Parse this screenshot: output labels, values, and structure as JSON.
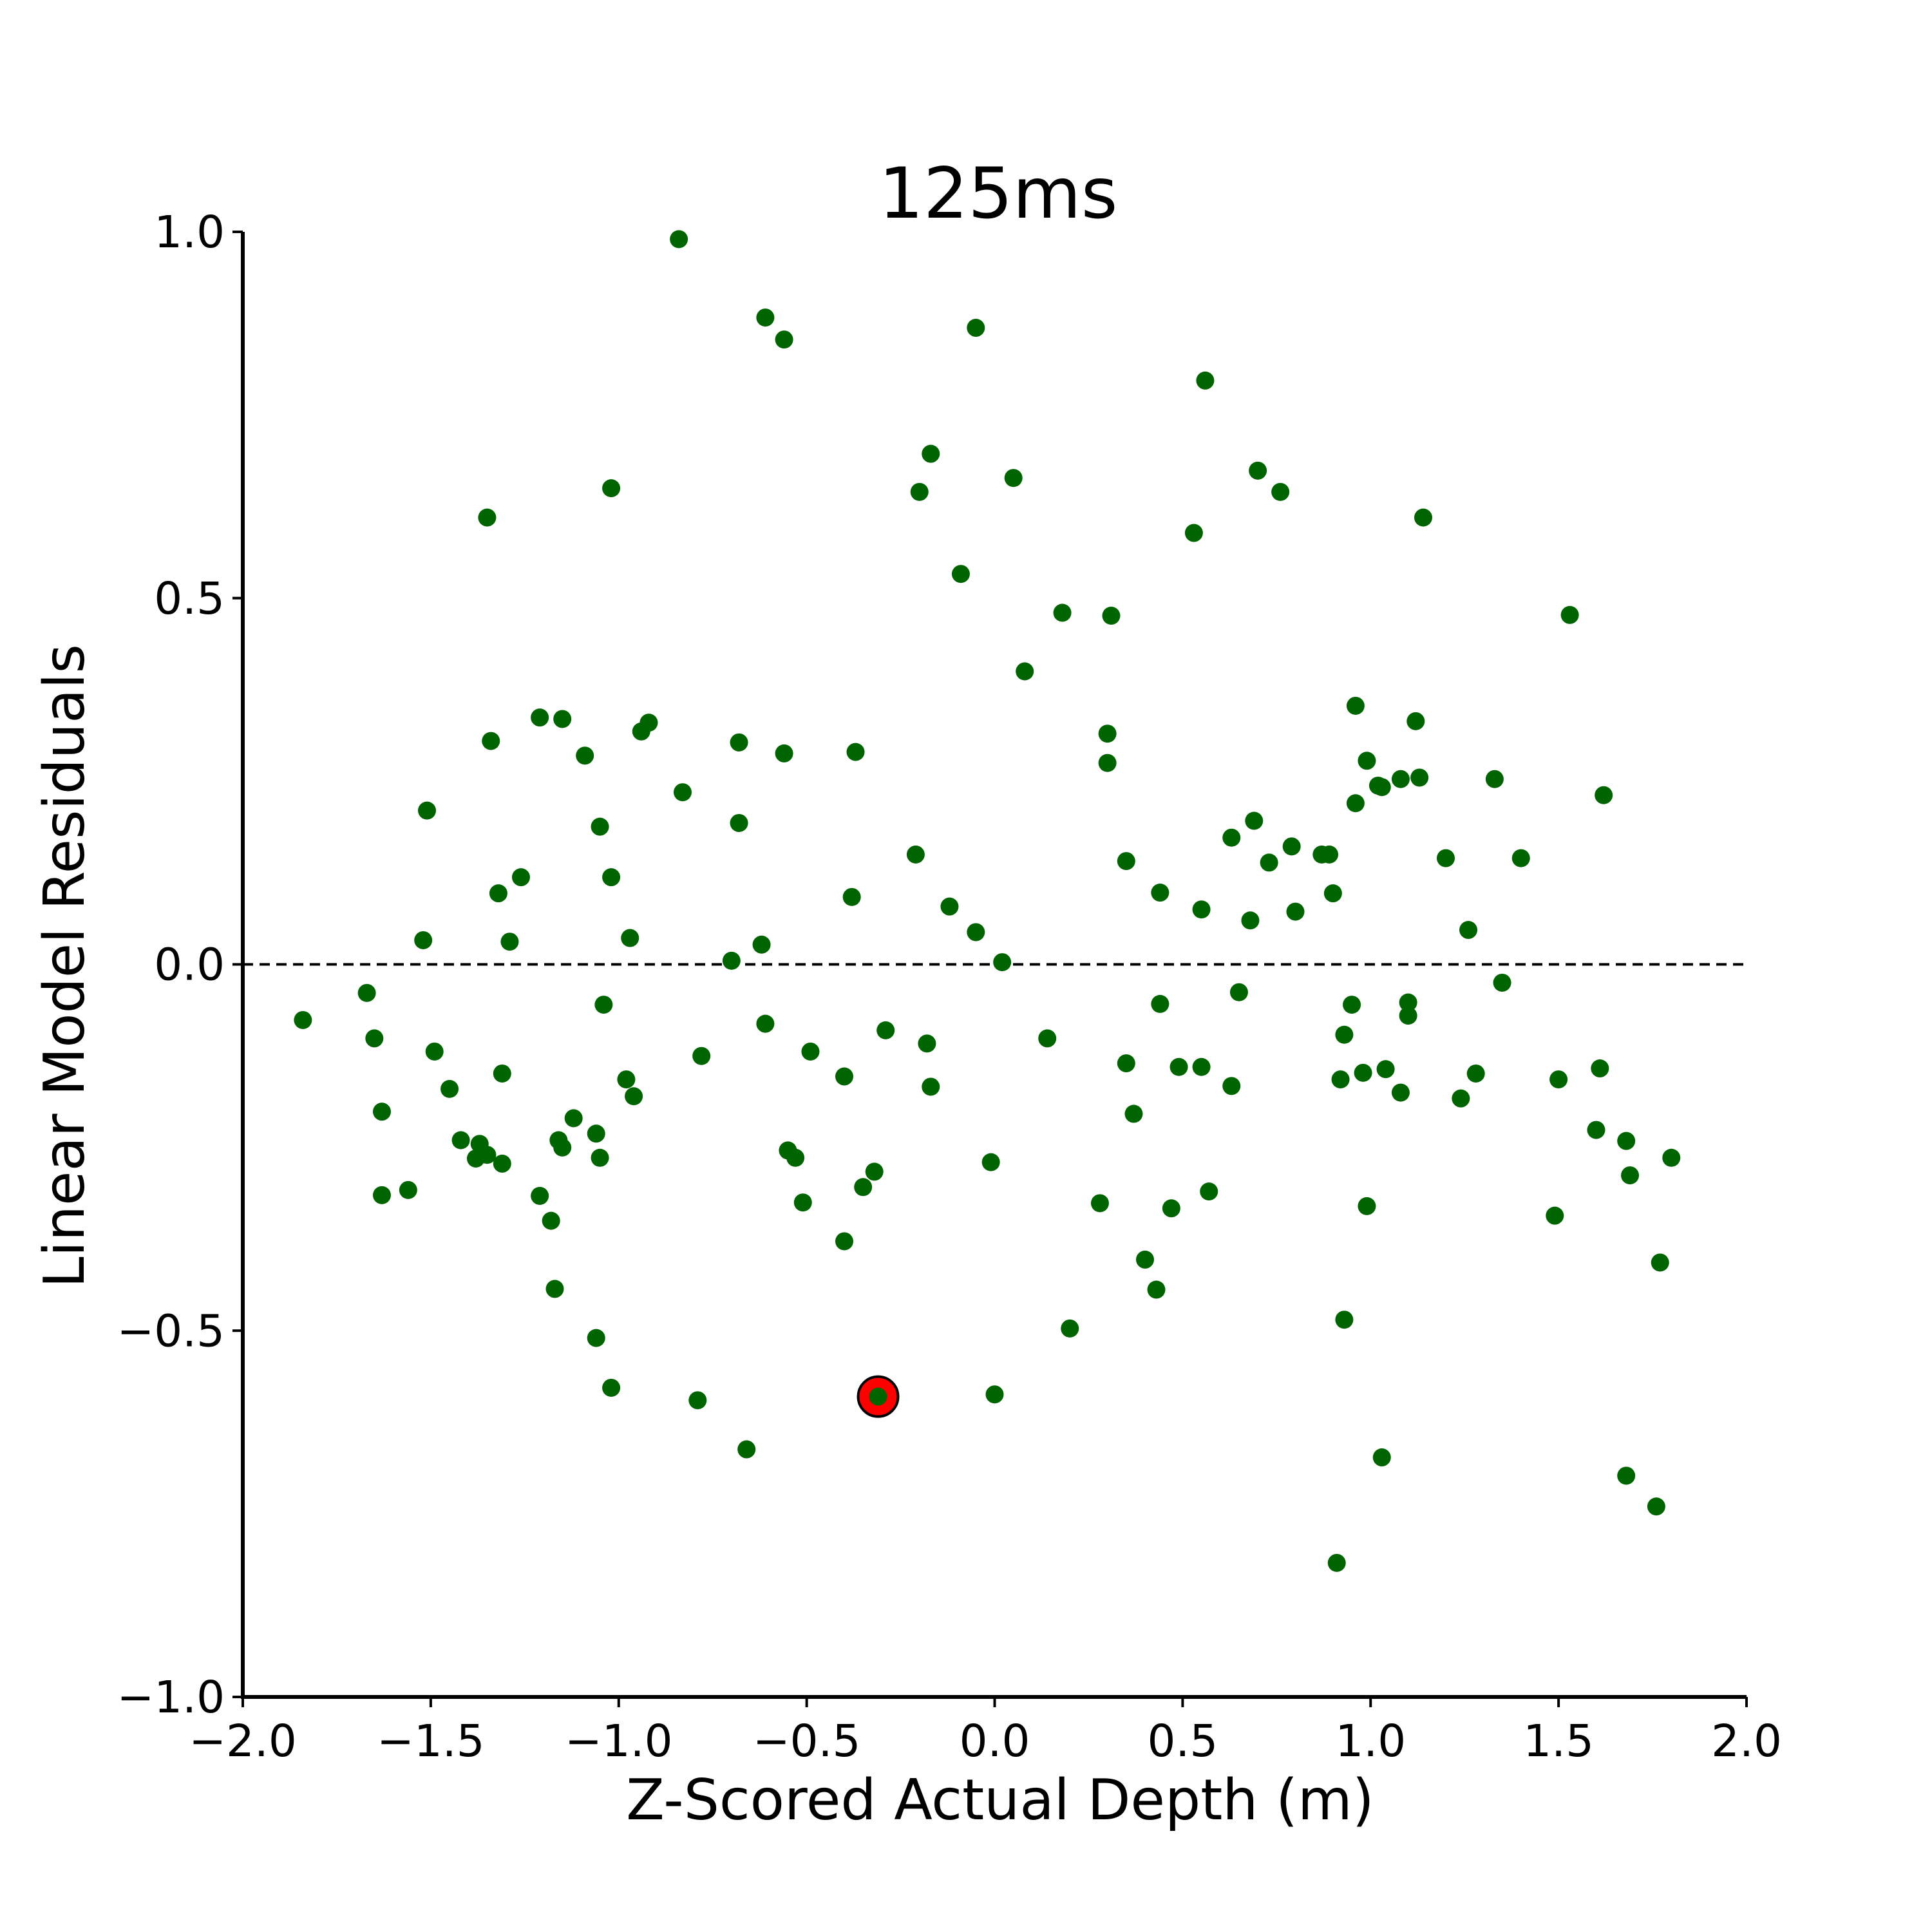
{
  "chart_data": {
    "type": "scatter",
    "title": "125ms",
    "xlabel": "Z-Scored Actual Depth (m)",
    "ylabel": "Linear Model Residuals",
    "xlim": [
      -2.0,
      2.0
    ],
    "ylim": [
      -1.0,
      1.0
    ],
    "x_ticks": [
      "−2.0",
      "−1.5",
      "−1.0",
      "−0.5",
      "0.0",
      "0.5",
      "1.0",
      "1.5",
      "2.0"
    ],
    "y_ticks": [
      "−1.0",
      "−0.5",
      "0.0",
      "0.5",
      "1.0"
    ],
    "reference_line": {
      "y": 0.0,
      "style": "dashed"
    },
    "grid": false,
    "point_color": "#006400",
    "highlight_color": "#ff0000",
    "points": [
      [
        -1.84,
        -0.076
      ],
      [
        -1.67,
        -0.039
      ],
      [
        -1.65,
        -0.101
      ],
      [
        -1.63,
        -0.201
      ],
      [
        -1.63,
        -0.315
      ],
      [
        -1.56,
        -0.308
      ],
      [
        -1.52,
        0.033
      ],
      [
        -1.51,
        0.21
      ],
      [
        -1.49,
        -0.119
      ],
      [
        -1.45,
        -0.17
      ],
      [
        -1.42,
        -0.24
      ],
      [
        -1.38,
        -0.265
      ],
      [
        -1.37,
        -0.245
      ],
      [
        -1.35,
        0.61
      ],
      [
        -1.35,
        -0.26
      ],
      [
        -1.34,
        0.305
      ],
      [
        -1.32,
        0.097
      ],
      [
        -1.31,
        -0.149
      ],
      [
        -1.31,
        -0.272
      ],
      [
        -1.29,
        0.031
      ],
      [
        -1.26,
        0.119
      ],
      [
        -1.21,
        0.337
      ],
      [
        -1.21,
        -0.316
      ],
      [
        -1.18,
        -0.35
      ],
      [
        -1.17,
        -0.443
      ],
      [
        -1.16,
        -0.24
      ],
      [
        -1.15,
        -0.25
      ],
      [
        -1.15,
        0.335
      ],
      [
        -1.12,
        -0.21
      ],
      [
        -1.09,
        0.285
      ],
      [
        -1.06,
        -0.231
      ],
      [
        -1.06,
        -0.51
      ],
      [
        -1.05,
        0.188
      ],
      [
        -1.05,
        -0.264
      ],
      [
        -1.04,
        -0.055
      ],
      [
        -1.02,
        0.65
      ],
      [
        -1.02,
        0.119
      ],
      [
        -1.02,
        -0.578
      ],
      [
        -0.98,
        -0.157
      ],
      [
        -0.97,
        0.036
      ],
      [
        -0.96,
        -0.18
      ],
      [
        -0.94,
        0.318
      ],
      [
        -0.92,
        0.33
      ],
      [
        -0.84,
        0.99
      ],
      [
        -0.83,
        0.235
      ],
      [
        -0.79,
        -0.595
      ],
      [
        -0.78,
        -0.125
      ],
      [
        -0.7,
        0.005
      ],
      [
        -0.68,
        0.303
      ],
      [
        -0.68,
        0.193
      ],
      [
        -0.66,
        -0.662
      ],
      [
        -0.61,
        0.883
      ],
      [
        -0.61,
        -0.081
      ],
      [
        -0.62,
        0.027
      ],
      [
        -0.56,
        0.853
      ],
      [
        -0.56,
        0.288
      ],
      [
        -0.55,
        -0.254
      ],
      [
        -0.53,
        -0.264
      ],
      [
        -0.51,
        -0.325
      ],
      [
        -0.49,
        -0.119
      ],
      [
        -0.4,
        -0.153
      ],
      [
        -0.4,
        -0.378
      ],
      [
        -0.38,
        0.092
      ],
      [
        -0.37,
        0.29
      ],
      [
        -0.35,
        -0.304
      ],
      [
        -0.32,
        -0.283
      ],
      [
        -0.31,
        -0.59
      ],
      [
        -0.29,
        -0.09
      ],
      [
        -0.21,
        0.15
      ],
      [
        -0.2,
        0.645
      ],
      [
        -0.18,
        -0.108
      ],
      [
        -0.17,
        0.697
      ],
      [
        -0.17,
        -0.167
      ],
      [
        -0.12,
        0.079
      ],
      [
        -0.09,
        0.533
      ],
      [
        -0.05,
        0.869
      ],
      [
        -0.05,
        0.044
      ],
      [
        -0.01,
        -0.27
      ],
      [
        0.0,
        -0.587
      ],
      [
        0.02,
        0.003
      ],
      [
        0.05,
        0.664
      ],
      [
        0.08,
        0.4
      ],
      [
        0.14,
        -0.101
      ],
      [
        0.18,
        0.48
      ],
      [
        0.2,
        -0.497
      ],
      [
        0.28,
        -0.326
      ],
      [
        0.3,
        0.315
      ],
      [
        0.3,
        0.275
      ],
      [
        0.31,
        0.476
      ],
      [
        0.35,
        0.141
      ],
      [
        0.35,
        -0.135
      ],
      [
        0.37,
        -0.204
      ],
      [
        0.4,
        -0.403
      ],
      [
        0.43,
        -0.444
      ],
      [
        0.44,
        0.098
      ],
      [
        0.44,
        -0.054
      ],
      [
        0.47,
        -0.333
      ],
      [
        0.49,
        -0.14
      ],
      [
        0.53,
        0.589
      ],
      [
        0.55,
        0.075
      ],
      [
        0.55,
        -0.14
      ],
      [
        0.56,
        0.797
      ],
      [
        0.57,
        -0.31
      ],
      [
        0.63,
        0.173
      ],
      [
        0.63,
        -0.166
      ],
      [
        0.65,
        -0.038
      ],
      [
        0.68,
        0.06
      ],
      [
        0.69,
        0.196
      ],
      [
        0.7,
        0.674
      ],
      [
        0.73,
        0.139
      ],
      [
        0.76,
        0.645
      ],
      [
        0.79,
        0.161
      ],
      [
        0.8,
        0.072
      ],
      [
        0.87,
        0.15
      ],
      [
        0.89,
        0.15
      ],
      [
        0.9,
        0.097
      ],
      [
        0.91,
        -0.817
      ],
      [
        0.92,
        -0.157
      ],
      [
        0.93,
        -0.096
      ],
      [
        0.93,
        -0.485
      ],
      [
        0.95,
        -0.055
      ],
      [
        0.96,
        0.22
      ],
      [
        0.96,
        0.353
      ],
      [
        0.98,
        -0.148
      ],
      [
        0.99,
        0.278
      ],
      [
        0.99,
        -0.33
      ],
      [
        1.02,
        0.244
      ],
      [
        1.03,
        0.242
      ],
      [
        1.03,
        -0.673
      ],
      [
        1.04,
        -0.143
      ],
      [
        1.08,
        -0.175
      ],
      [
        1.08,
        0.253
      ],
      [
        1.1,
        -0.07
      ],
      [
        1.1,
        -0.052
      ],
      [
        1.12,
        0.332
      ],
      [
        1.13,
        0.255
      ],
      [
        1.14,
        0.61
      ],
      [
        1.2,
        0.145
      ],
      [
        1.24,
        -0.183
      ],
      [
        1.26,
        0.047
      ],
      [
        1.28,
        -0.149
      ],
      [
        1.33,
        0.253
      ],
      [
        1.35,
        -0.025
      ],
      [
        1.4,
        0.145
      ],
      [
        1.49,
        -0.343
      ],
      [
        1.5,
        -0.157
      ],
      [
        1.53,
        0.477
      ],
      [
        1.6,
        -0.226
      ],
      [
        1.61,
        -0.142
      ],
      [
        1.62,
        0.231
      ],
      [
        1.68,
        -0.241
      ],
      [
        1.68,
        -0.698
      ],
      [
        1.69,
        -0.288
      ],
      [
        1.76,
        -0.74
      ],
      [
        1.77,
        -0.407
      ],
      [
        1.8,
        -0.264
      ]
    ],
    "highlighted_point": [
      -0.31,
      -0.59
    ]
  }
}
